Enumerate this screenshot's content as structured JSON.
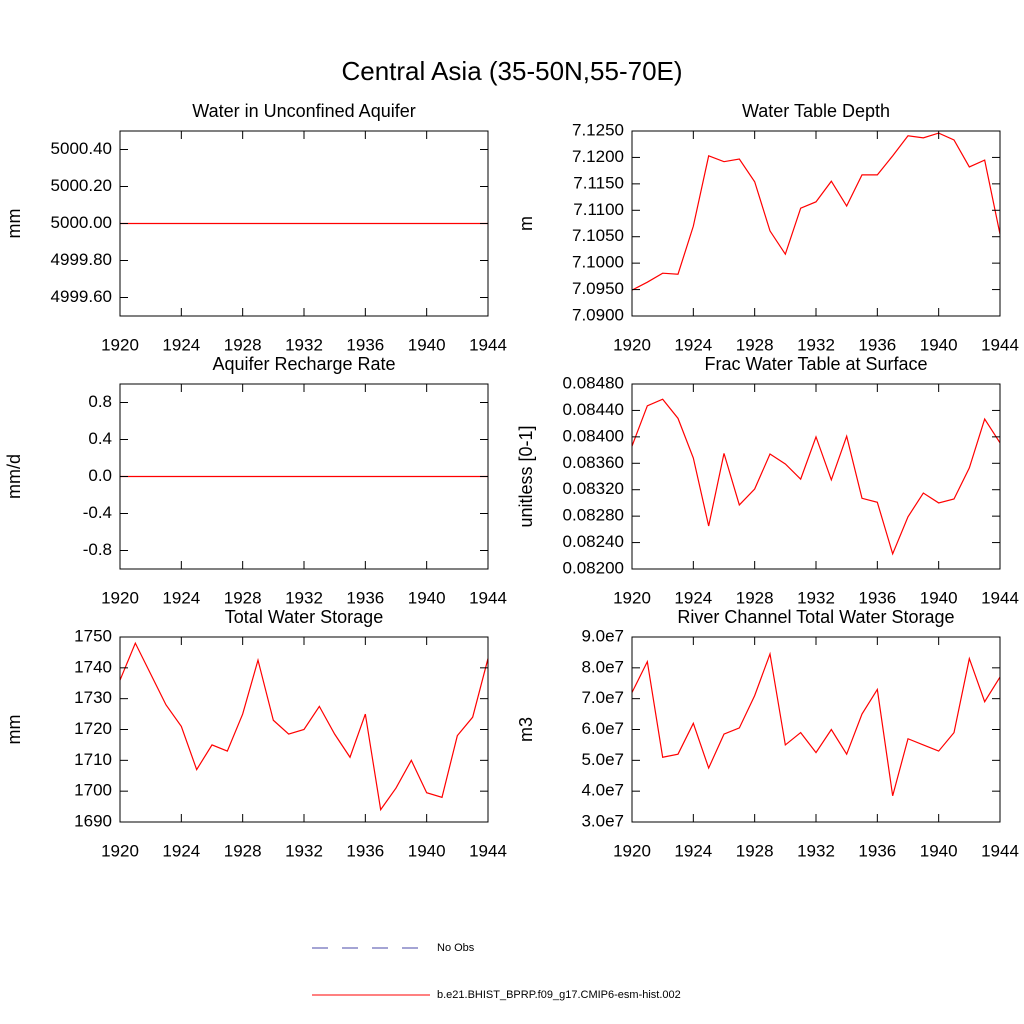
{
  "title": "Central Asia (35-50N,55-70E)",
  "legend": [
    {
      "name": "No Obs",
      "color": "#4a4aa8",
      "dashed": true
    },
    {
      "name": "b.e21.BHIST_BPRP.f09_g17.CMIP6-esm-hist.002",
      "color": "#ff0000",
      "dashed": false
    }
  ],
  "chart_data": [
    {
      "type": "line",
      "title": "Water in Unconfined Aquifer",
      "y_label": "mm",
      "x": [
        1920,
        1921,
        1922,
        1923,
        1924,
        1925,
        1926,
        1927,
        1928,
        1929,
        1930,
        1931,
        1932,
        1933,
        1934,
        1935,
        1936,
        1937,
        1938,
        1939,
        1940,
        1941,
        1942,
        1943,
        1944
      ],
      "values": [
        5000,
        5000,
        5000,
        5000,
        5000,
        5000,
        5000,
        5000,
        5000,
        5000,
        5000,
        5000,
        5000,
        5000,
        5000,
        5000,
        5000,
        5000,
        5000,
        5000,
        5000,
        5000,
        5000,
        5000,
        5000
      ],
      "color": "#ff0000",
      "xlim": [
        1920,
        1944
      ],
      "xticks": [
        1920,
        1924,
        1928,
        1932,
        1936,
        1940,
        1944
      ],
      "ylim": [
        4999.5,
        5000.5
      ],
      "yticks": [
        {
          "value": 4999.6,
          "label": "4999.60"
        },
        {
          "value": 4999.8,
          "label": "4999.80"
        },
        {
          "value": 5000,
          "label": "5000.00"
        },
        {
          "value": 5000.2,
          "label": "5000.20"
        },
        {
          "value": 5000.4,
          "label": "5000.40"
        }
      ]
    },
    {
      "type": "line",
      "title": "Water Table Depth",
      "y_label": "m",
      "x": [
        1920,
        1921,
        1922,
        1923,
        1924,
        1925,
        1926,
        1927,
        1928,
        1929,
        1930,
        1931,
        1932,
        1933,
        1934,
        1935,
        1936,
        1937,
        1938,
        1939,
        1940,
        1941,
        1942,
        1943,
        1944
      ],
      "values": [
        7.0949,
        7.0964,
        7.0981,
        7.0979,
        7.107,
        7.1203,
        7.1192,
        7.1197,
        7.1154,
        7.1061,
        7.1017,
        7.1104,
        7.1116,
        7.1155,
        7.1108,
        7.1167,
        7.1167,
        7.1203,
        7.1241,
        7.1237,
        7.1246,
        7.1233,
        7.1182,
        7.1195,
        7.1055
      ],
      "color": "#ff0000",
      "xlim": [
        1920,
        1944
      ],
      "xticks": [
        1920,
        1924,
        1928,
        1932,
        1936,
        1940,
        1944
      ],
      "ylim": [
        7.09,
        7.125
      ],
      "yticks": [
        {
          "value": 7.09,
          "label": "7.0900"
        },
        {
          "value": 7.095,
          "label": "7.0950"
        },
        {
          "value": 7.1,
          "label": "7.1000"
        },
        {
          "value": 7.105,
          "label": "7.1050"
        },
        {
          "value": 7.11,
          "label": "7.1100"
        },
        {
          "value": 7.115,
          "label": "7.1150"
        },
        {
          "value": 7.12,
          "label": "7.1200"
        },
        {
          "value": 7.125,
          "label": "7.1250"
        }
      ]
    },
    {
      "type": "line",
      "title": "Aquifer Recharge Rate",
      "y_label": "mm/d",
      "x": [
        1920,
        1921,
        1922,
        1923,
        1924,
        1925,
        1926,
        1927,
        1928,
        1929,
        1930,
        1931,
        1932,
        1933,
        1934,
        1935,
        1936,
        1937,
        1938,
        1939,
        1940,
        1941,
        1942,
        1943,
        1944
      ],
      "values": [
        0,
        0,
        0,
        0,
        0,
        0,
        0,
        0,
        0,
        0,
        0,
        0,
        0,
        0,
        0,
        0,
        0,
        0,
        0,
        0,
        0,
        0,
        0,
        0,
        0
      ],
      "color": "#ff0000",
      "xlim": [
        1920,
        1944
      ],
      "xticks": [
        1920,
        1924,
        1928,
        1932,
        1936,
        1940,
        1944
      ],
      "ylim": [
        -1,
        1
      ],
      "yticks": [
        -0.8,
        -0.4,
        {
          "value": 0,
          "label": "0.0"
        },
        0.4,
        0.8
      ]
    },
    {
      "type": "line",
      "title": "Frac Water Table at Surface",
      "y_label": "unitless [0-1]",
      "x": [
        1920,
        1921,
        1922,
        1923,
        1924,
        1925,
        1926,
        1927,
        1928,
        1929,
        1930,
        1931,
        1932,
        1933,
        1934,
        1935,
        1936,
        1937,
        1938,
        1939,
        1940,
        1941,
        1942,
        1943,
        1944
      ],
      "values": [
        0.08386,
        0.08447,
        0.08457,
        0.08428,
        0.08368,
        0.08265,
        0.08375,
        0.08297,
        0.08321,
        0.08374,
        0.08359,
        0.08336,
        0.084,
        0.08335,
        0.08401,
        0.08307,
        0.08301,
        0.08223,
        0.08279,
        0.08315,
        0.083,
        0.08306,
        0.08353,
        0.08427,
        0.08391
      ],
      "color": "#ff0000",
      "xlim": [
        1920,
        1944
      ],
      "xticks": [
        1920,
        1924,
        1928,
        1932,
        1936,
        1940,
        1944
      ],
      "ylim": [
        0.082,
        0.0848
      ],
      "yticks": [
        {
          "value": 0.082,
          "label": "0.08200"
        },
        {
          "value": 0.0824,
          "label": "0.08240"
        },
        {
          "value": 0.0828,
          "label": "0.08280"
        },
        {
          "value": 0.0832,
          "label": "0.08320"
        },
        {
          "value": 0.0836,
          "label": "0.08360"
        },
        {
          "value": 0.084,
          "label": "0.08400"
        },
        {
          "value": 0.0844,
          "label": "0.08440"
        },
        {
          "value": 0.0848,
          "label": "0.08480"
        }
      ]
    },
    {
      "type": "line",
      "title": "Total Water Storage",
      "y_label": "mm",
      "x": [
        1920,
        1921,
        1922,
        1923,
        1924,
        1925,
        1926,
        1927,
        1928,
        1929,
        1930,
        1931,
        1932,
        1933,
        1934,
        1935,
        1936,
        1937,
        1938,
        1939,
        1940,
        1941,
        1942,
        1943,
        1944
      ],
      "values": [
        1736,
        1748,
        1738,
        1728,
        1721,
        1707,
        1715,
        1713,
        1725,
        1742.5,
        1723,
        1718.5,
        1720,
        1727.5,
        1718.5,
        1711,
        1725,
        1694,
        1701,
        1710,
        1699.5,
        1698,
        1718,
        1724,
        1743
      ],
      "color": "#ff0000",
      "xlim": [
        1920,
        1944
      ],
      "xticks": [
        1920,
        1924,
        1928,
        1932,
        1936,
        1940,
        1944
      ],
      "ylim": [
        1690,
        1750
      ],
      "yticks": [
        1690,
        1700,
        1710,
        1720,
        1730,
        1740,
        1750
      ]
    },
    {
      "type": "line",
      "title": "River Channel Total Water Storage",
      "y_label": "m3",
      "x": [
        1920,
        1921,
        1922,
        1923,
        1924,
        1925,
        1926,
        1927,
        1928,
        1929,
        1930,
        1931,
        1932,
        1933,
        1934,
        1935,
        1936,
        1937,
        1938,
        1939,
        1940,
        1941,
        1942,
        1943,
        1944
      ],
      "values": [
        72000000,
        82000000,
        51000000,
        52000000,
        62000000,
        47500000,
        58500000,
        60500000,
        71000000,
        84500000,
        55000000,
        59000000,
        52500000,
        60000000,
        52000000,
        65000000,
        73000000,
        38500000,
        57000000,
        55000000,
        53000000,
        59000000,
        83000000,
        69000000,
        77000000
      ],
      "color": "#ff0000",
      "xlim": [
        1920,
        1944
      ],
      "xticks": [
        1920,
        1924,
        1928,
        1932,
        1936,
        1940,
        1944
      ],
      "ylim": [
        30000000,
        90000000
      ],
      "yticks": [
        {
          "value": 30000000,
          "label": "3.0e7"
        },
        {
          "value": 40000000,
          "label": "4.0e7"
        },
        {
          "value": 50000000,
          "label": "5.0e7"
        },
        {
          "value": 60000000,
          "label": "6.0e7"
        },
        {
          "value": 70000000,
          "label": "7.0e7"
        },
        {
          "value": 80000000,
          "label": "8.0e7"
        },
        {
          "value": 90000000,
          "label": "9.0e7"
        }
      ]
    }
  ]
}
